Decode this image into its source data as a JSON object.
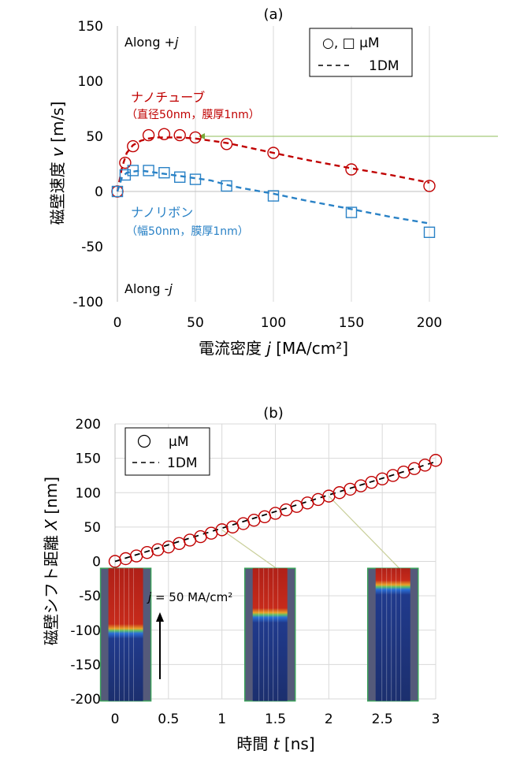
{
  "figure": {
    "label_a": "(a)",
    "label_b": "(b)"
  },
  "chart_data": [
    {
      "type": "scatter",
      "panel": "(a)",
      "xlabel": "電流密度",
      "xlabel_var": "j",
      "xlabel_unit": "[MA/cm²]",
      "ylabel": "磁壁速度",
      "ylabel_var": "v",
      "ylabel_unit": "[m/s]",
      "xlim": [
        0,
        200
      ],
      "ylim": [
        -100,
        150
      ],
      "xticks": [
        0,
        50,
        100,
        150,
        200
      ],
      "yticks": [
        -100,
        -50,
        0,
        50,
        100,
        150
      ],
      "grid": "vertical",
      "legend_position": "top-right",
      "legend": {
        "markers_label": "○, □  μM",
        "line_label": "1DM"
      },
      "annotations": {
        "along_plus": "Along +",
        "along_plus_var": "j",
        "along_minus": "Along -",
        "along_minus_var": "j",
        "nanotube_name": "ナノチューブ",
        "nanotube_spec": "（直径50nm，膜厚1nm）",
        "nanoribbon_name": "ナノリボン",
        "nanoribbon_spec": "（幅50nm，膜厚1nm）"
      },
      "series": [
        {
          "name": "ナノチューブ",
          "color": "#c00000",
          "marker": "circle",
          "x": [
            0,
            5,
            10,
            20,
            30,
            40,
            50,
            70,
            100,
            150,
            200
          ],
          "y": [
            0,
            26,
            41,
            51,
            52,
            51,
            49,
            43,
            35,
            20,
            5
          ]
        },
        {
          "name": "ナノリボン",
          "color": "#2a82c6",
          "marker": "square",
          "x": [
            0,
            5,
            10,
            20,
            30,
            40,
            50,
            70,
            100,
            150,
            200
          ],
          "y": [
            0,
            15,
            19,
            19,
            17,
            13,
            11,
            5,
            -4,
            -19,
            -37
          ]
        }
      ],
      "model_curves": [
        {
          "color": "#c00000",
          "x": [
            0,
            3,
            6,
            10,
            15,
            20,
            25,
            30,
            40,
            50,
            60,
            70,
            80,
            100,
            120,
            150,
            175,
            200
          ],
          "y": [
            0,
            22,
            35,
            42,
            46,
            48,
            49,
            49,
            49,
            48,
            46,
            44,
            41,
            35,
            29,
            21,
            15,
            8
          ]
        },
        {
          "color": "#2a82c6",
          "x": [
            0,
            3,
            6,
            10,
            15,
            20,
            25,
            30,
            40,
            50,
            60,
            70,
            80,
            100,
            120,
            150,
            175,
            200
          ],
          "y": [
            0,
            13,
            17,
            18,
            19,
            18,
            17,
            16,
            14,
            12,
            10,
            6,
            3,
            -2,
            -8,
            -16,
            -23,
            -29
          ]
        }
      ]
    },
    {
      "type": "scatter",
      "panel": "(b)",
      "xlabel": "時間",
      "xlabel_var": "t",
      "xlabel_unit": "[ns]",
      "ylabel": "磁壁シフト距離",
      "ylabel_var": "X",
      "ylabel_unit": "[nm]",
      "xlim": [
        0,
        3
      ],
      "ylim": [
        -200,
        200
      ],
      "xticks": [
        0,
        0.5,
        1,
        1.5,
        2,
        2.5,
        3
      ],
      "yticks": [
        -200,
        -150,
        -100,
        -50,
        0,
        50,
        100,
        150,
        200
      ],
      "grid": "both",
      "legend_position": "top-left",
      "legend": {
        "markers_label": "μM",
        "line_label": "1DM"
      },
      "annotations": {
        "current_var": "j",
        "current_text": " = 50 MA/cm²"
      },
      "series": [
        {
          "name": "μM",
          "color": "#c00000",
          "marker": "circle",
          "x": [
            0,
            0.1,
            0.2,
            0.3,
            0.4,
            0.5,
            0.6,
            0.7,
            0.8,
            0.9,
            1.0,
            1.1,
            1.2,
            1.3,
            1.4,
            1.5,
            1.6,
            1.7,
            1.8,
            1.9,
            2.0,
            2.1,
            2.2,
            2.3,
            2.4,
            2.5,
            2.6,
            2.7,
            2.8,
            2.9,
            3.0
          ],
          "y": [
            0,
            4,
            8,
            13,
            17,
            21,
            26,
            31,
            36,
            41,
            46,
            50,
            55,
            60,
            65,
            70,
            75,
            80,
            85,
            90,
            95,
            100,
            105,
            110,
            115,
            120,
            125,
            130,
            135,
            140,
            147
          ]
        }
      ],
      "model_line": {
        "color": "#000000",
        "x": [
          0,
          3
        ],
        "y": [
          0,
          145
        ]
      },
      "insets": [
        {
          "t": 0.1,
          "marker_t": null,
          "marker_x": null,
          "wall": "low"
        },
        {
          "t": 1.45,
          "marker_t": 1.0,
          "marker_x": 46,
          "wall": "mid"
        },
        {
          "t": 2.6,
          "marker_t": 2.0,
          "marker_x": 95,
          "wall": "high"
        }
      ]
    }
  ]
}
